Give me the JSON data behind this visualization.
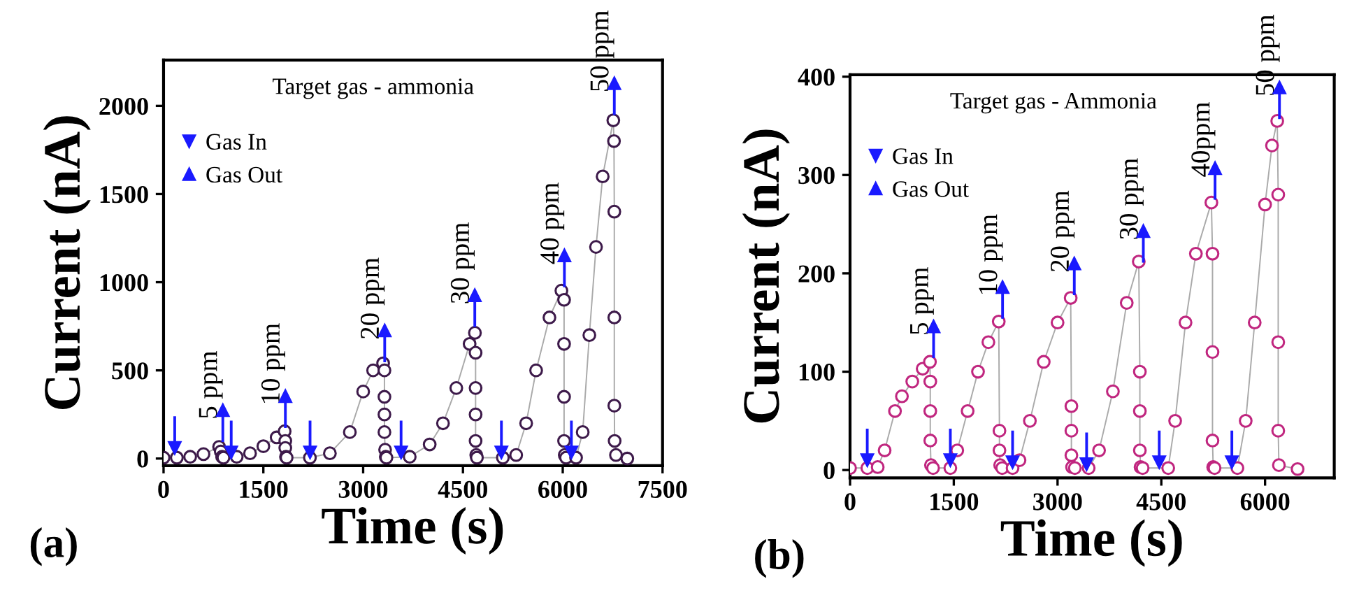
{
  "chart_data": [
    {
      "type": "line",
      "xlabel": "Time (s)",
      "ylabel": "Current (nA)",
      "xlim": [
        0,
        7500
      ],
      "ylim": [
        -40,
        2260
      ],
      "xticks": [
        0,
        1500,
        3000,
        4500,
        6000,
        7500
      ],
      "yticks": [
        0,
        500,
        1000,
        1500,
        2000
      ],
      "grid": false,
      "legend": "top left",
      "marker": "circle",
      "line_style": "solid",
      "annotations": [
        "(a)",
        "Target gas - ammonia",
        "5 ppm",
        "10 ppm",
        "20 ppm",
        "30 ppm",
        "40 ppm",
        "50 ppm"
      ],
      "series": [
        {
          "color": "#3d1a4a",
          "x": [
            0,
            200,
            400,
            600,
            835,
            860,
            880,
            900,
            1100,
            1300,
            1500,
            1700,
            1820,
            1830,
            1830,
            1840,
            1850,
            2200,
            2500,
            2800,
            3000,
            3150,
            3300,
            3320,
            3320,
            3320,
            3320,
            3330,
            3340,
            3350,
            3700,
            4000,
            4200,
            4400,
            4600,
            4680,
            4690,
            4690,
            4690,
            4690,
            4700,
            4710,
            5100,
            5300,
            5450,
            5600,
            5800,
            5980,
            6020,
            6020,
            6020,
            6020,
            6030,
            6050,
            6200,
            6300,
            6400,
            6500,
            6600,
            6760,
            6770,
            6775,
            6775,
            6775,
            6780,
            6800,
            6970
          ],
          "values": [
            5,
            5,
            10,
            25,
            66,
            40,
            10,
            5,
            10,
            30,
            70,
            120,
            155,
            100,
            60,
            10,
            5,
            5,
            30,
            150,
            380,
            500,
            540,
            500,
            350,
            250,
            150,
            50,
            10,
            5,
            10,
            80,
            200,
            400,
            650,
            713,
            600,
            400,
            250,
            100,
            20,
            5,
            5,
            20,
            200,
            500,
            800,
            952,
            900,
            650,
            350,
            100,
            20,
            5,
            5,
            150,
            700,
            1200,
            1600,
            1918,
            1800,
            1400,
            800,
            300,
            100,
            20,
            0
          ]
        },
        {
          "type": "scatter",
          "name": "Gas In",
          "color": "#1a1aff",
          "marker": "triangle",
          "x": [
            168,
            1017,
            2202,
            3570,
            5078,
            6130
          ],
          "values": [
            60,
            35,
            35,
            35,
            35,
            35
          ]
        },
        {
          "type": "scatter",
          "name": "Gas Out",
          "color": "#1a1aff",
          "marker": "triangle",
          "x": [
            891,
            1831,
            3324,
            4678,
            6025,
            6775
          ],
          "values": [
            274,
            354,
            726,
            926,
            1152,
            2128
          ]
        }
      ]
    },
    {
      "type": "line",
      "xlabel": "Time (s)",
      "ylabel": "Current (nA)",
      "xlim": [
        0,
        7000
      ],
      "ylim": [
        -8,
        402
      ],
      "xticks": [
        0,
        1500,
        3000,
        4500,
        6000
      ],
      "yticks": [
        0,
        100,
        200,
        300,
        400
      ],
      "grid": false,
      "legend": "top left",
      "marker": "circle",
      "line_style": "solid",
      "annotations": [
        "(b)",
        "Target gas - Ammonia",
        "5 ppm",
        "10 ppm",
        "20 ppm",
        "30 ppm",
        "40ppm",
        "50 ppm"
      ],
      "series": [
        {
          "color": "#c0267f",
          "x": [
            0,
            250,
            400,
            500,
            650,
            750,
            900,
            1050,
            1155,
            1160,
            1160,
            1160,
            1170,
            1200,
            1450,
            1550,
            1700,
            1850,
            2000,
            2150,
            2160,
            2160,
            2170,
            2200,
            2350,
            2450,
            2600,
            2800,
            3000,
            3190,
            3200,
            3200,
            3200,
            3210,
            3250,
            3450,
            3600,
            3800,
            4000,
            4174,
            4190,
            4190,
            4190,
            4200,
            4230,
            4600,
            4700,
            4850,
            5000,
            5224,
            5240,
            5240,
            5240,
            5250,
            5270,
            5600,
            5720,
            5850,
            6000,
            6100,
            6176,
            6190,
            6190,
            6190,
            6200,
            6470
          ],
          "values": [
            2,
            2,
            3,
            20,
            60,
            75,
            90,
            103,
            110,
            90,
            60,
            30,
            5,
            2,
            2,
            20,
            60,
            100,
            130,
            151,
            40,
            20,
            5,
            2,
            2,
            10,
            50,
            110,
            150,
            175,
            65,
            40,
            15,
            3,
            2,
            2,
            20,
            80,
            170,
            212,
            100,
            60,
            20,
            3,
            2,
            2,
            50,
            150,
            220,
            272,
            220,
            120,
            30,
            3,
            2,
            2,
            50,
            150,
            270,
            330,
            355,
            280,
            130,
            40,
            5,
            1
          ]
        },
        {
          "type": "scatter",
          "name": "Gas In",
          "color": "#1a1aff",
          "marker": "triangle",
          "x": [
            249,
            1450,
            2350,
            3420,
            4470,
            5520
          ],
          "values": [
            10,
            10,
            8,
            6,
            8,
            8
          ]
        },
        {
          "type": "scatter",
          "name": "Gas Out",
          "color": "#1a1aff",
          "marker": "triangle",
          "x": [
            1208,
            2205,
            3242,
            4240,
            5277,
            6208
          ],
          "values": [
            146,
            186,
            210,
            243,
            307,
            389
          ]
        }
      ]
    }
  ]
}
